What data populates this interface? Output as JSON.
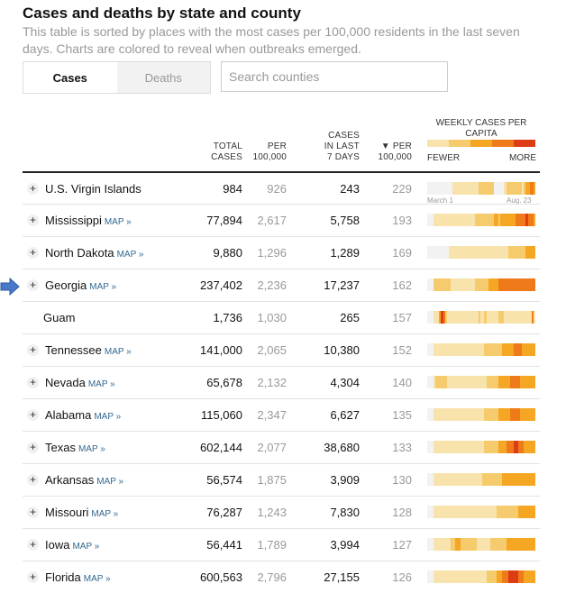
{
  "header": {
    "title": "Cases and deaths by state and county",
    "subtitle": "This table is sorted by places with the most cases per 100,000 residents in the last seven days. Charts are colored to reveal when outbreaks emerged."
  },
  "toggle": {
    "cases_label": "Cases",
    "deaths_label": "Deaths"
  },
  "search": {
    "placeholder": "Search counties"
  },
  "columns": {
    "total_cases": "TOTAL CASES",
    "per_100k": "PER 100,000",
    "cases_last_7": "CASES IN LAST 7 DAYS",
    "per_100k_7": "▼ PER 100,000",
    "weekly": "WEEKLY CASES PER CAPITA",
    "fewer": "FEWER",
    "more": "MORE"
  },
  "colors": {
    "c0": "#f2f2f2",
    "c1": "#f8e3ad",
    "c2": "#f6cb6e",
    "c3": "#f5a623",
    "c4": "#ef7a19",
    "c5": "#dc3d14"
  },
  "timeline": {
    "start": "March 1",
    "end": "Aug. 23"
  },
  "rows": [
    {
      "name": "U.S. Virgin Islands",
      "map": "",
      "plus": "+",
      "total": "984",
      "per": "926",
      "last7": "243",
      "per7": "229",
      "spark": [
        0,
        0,
        0,
        0,
        0,
        0,
        0,
        0,
        0,
        0,
        0,
        0,
        0,
        1,
        1,
        1,
        1,
        1,
        1,
        1,
        1,
        1,
        1,
        1,
        1,
        1,
        2,
        2,
        2,
        2,
        2,
        2,
        2,
        2,
        0,
        0,
        0,
        0,
        0,
        1,
        2,
        2,
        2,
        2,
        2,
        2,
        2,
        2,
        1,
        2,
        3,
        3,
        4,
        4,
        3
      ]
    },
    {
      "name": "Mississippi",
      "map": "MAP »",
      "plus": "+",
      "total": "77,894",
      "per": "2,617",
      "last7": "5,758",
      "per7": "193",
      "spark": [
        0,
        0,
        0,
        1,
        1,
        1,
        1,
        1,
        1,
        1,
        1,
        1,
        1,
        1,
        1,
        1,
        1,
        1,
        1,
        1,
        1,
        1,
        1,
        1,
        2,
        2,
        2,
        2,
        2,
        2,
        2,
        2,
        2,
        2,
        3,
        3,
        2,
        3,
        3,
        3,
        3,
        3,
        3,
        3,
        3,
        4,
        4,
        4,
        4,
        4,
        5,
        4,
        4,
        4,
        3
      ]
    },
    {
      "name": "North Dakota",
      "map": "MAP »",
      "plus": "+",
      "total": "9,880",
      "per": "1,296",
      "last7": "1,289",
      "per7": "169",
      "spark": [
        0,
        0,
        0,
        0,
        0,
        0,
        0,
        0,
        0,
        0,
        0,
        1,
        1,
        1,
        1,
        1,
        1,
        1,
        1,
        1,
        1,
        1,
        1,
        1,
        1,
        1,
        1,
        1,
        1,
        1,
        1,
        1,
        1,
        1,
        1,
        1,
        1,
        1,
        1,
        1,
        1,
        2,
        2,
        2,
        2,
        2,
        2,
        2,
        2,
        2,
        3,
        3,
        3,
        3,
        3
      ]
    },
    {
      "name": "Georgia",
      "map": "MAP »",
      "plus": "+",
      "total": "237,402",
      "per": "2,236",
      "last7": "17,237",
      "per7": "162",
      "spark": [
        0,
        0,
        0,
        2,
        2,
        2,
        2,
        2,
        2,
        2,
        2,
        2,
        1,
        1,
        1,
        1,
        1,
        1,
        1,
        1,
        1,
        1,
        1,
        1,
        2,
        2,
        2,
        2,
        2,
        2,
        2,
        3,
        3,
        3,
        3,
        3,
        4,
        4,
        4,
        4,
        4,
        4,
        4,
        4,
        4,
        4,
        4,
        4,
        4,
        4,
        4,
        4,
        4,
        4,
        4
      ]
    },
    {
      "name": "Guam",
      "map": "",
      "plus": "",
      "total": "1,736",
      "per": "1,030",
      "last7": "265",
      "per7": "157",
      "spark": [
        0,
        0,
        0,
        1,
        1,
        1,
        3,
        5,
        4,
        2,
        1,
        1,
        1,
        1,
        1,
        1,
        1,
        1,
        1,
        1,
        1,
        1,
        1,
        1,
        1,
        1,
        2,
        1,
        1,
        2,
        1,
        1,
        1,
        1,
        1,
        1,
        2,
        2,
        2,
        1,
        1,
        1,
        1,
        1,
        1,
        1,
        1,
        1,
        1,
        1,
        1,
        1,
        1,
        4,
        1
      ]
    },
    {
      "name": "Tennessee",
      "map": "MAP »",
      "plus": "+",
      "total": "141,000",
      "per": "2,065",
      "last7": "10,380",
      "per7": "152",
      "spark": [
        0,
        0,
        0,
        1,
        1,
        1,
        1,
        1,
        1,
        1,
        1,
        1,
        1,
        1,
        1,
        1,
        1,
        1,
        1,
        1,
        1,
        1,
        1,
        1,
        1,
        1,
        1,
        1,
        1,
        2,
        2,
        2,
        2,
        2,
        2,
        2,
        2,
        2,
        3,
        3,
        3,
        3,
        3,
        3,
        4,
        4,
        4,
        4,
        3,
        3,
        3,
        3,
        3,
        3,
        3
      ]
    },
    {
      "name": "Nevada",
      "map": "MAP »",
      "plus": "+",
      "total": "65,678",
      "per": "2,132",
      "last7": "4,304",
      "per7": "140",
      "spark": [
        0,
        0,
        0,
        1,
        2,
        2,
        2,
        2,
        2,
        2,
        1,
        1,
        1,
        1,
        1,
        1,
        1,
        1,
        1,
        1,
        1,
        1,
        1,
        1,
        1,
        1,
        1,
        1,
        1,
        1,
        2,
        2,
        2,
        2,
        2,
        2,
        3,
        3,
        3,
        3,
        3,
        3,
        4,
        4,
        4,
        4,
        4,
        3,
        3,
        3,
        3,
        3,
        3,
        3,
        3
      ]
    },
    {
      "name": "Alabama",
      "map": "MAP »",
      "plus": "+",
      "total": "115,060",
      "per": "2,347",
      "last7": "6,627",
      "per7": "135",
      "spark": [
        0,
        0,
        0,
        1,
        1,
        1,
        1,
        1,
        1,
        1,
        1,
        1,
        1,
        1,
        1,
        1,
        1,
        1,
        1,
        1,
        1,
        1,
        1,
        1,
        1,
        1,
        1,
        1,
        1,
        2,
        2,
        2,
        2,
        2,
        2,
        2,
        3,
        3,
        3,
        3,
        3,
        3,
        4,
        4,
        4,
        4,
        4,
        3,
        3,
        3,
        3,
        3,
        3,
        3,
        3
      ]
    },
    {
      "name": "Texas",
      "map": "MAP »",
      "plus": "+",
      "total": "602,144",
      "per": "2,077",
      "last7": "38,680",
      "per7": "133",
      "spark": [
        0,
        0,
        0,
        1,
        1,
        1,
        1,
        1,
        1,
        1,
        1,
        1,
        1,
        1,
        1,
        1,
        1,
        1,
        1,
        1,
        1,
        1,
        1,
        1,
        1,
        1,
        1,
        1,
        1,
        2,
        2,
        2,
        2,
        2,
        2,
        2,
        3,
        3,
        3,
        3,
        4,
        4,
        4,
        4,
        5,
        5,
        4,
        4,
        4,
        3,
        3,
        3,
        3,
        3,
        3
      ]
    },
    {
      "name": "Arkansas",
      "map": "MAP »",
      "plus": "+",
      "total": "56,574",
      "per": "1,875",
      "last7": "3,909",
      "per7": "130",
      "spark": [
        0,
        0,
        0,
        1,
        1,
        1,
        1,
        1,
        1,
        1,
        1,
        1,
        1,
        1,
        1,
        1,
        1,
        1,
        1,
        1,
        1,
        1,
        1,
        1,
        1,
        1,
        1,
        1,
        2,
        2,
        2,
        2,
        2,
        2,
        2,
        2,
        2,
        2,
        3,
        3,
        3,
        3,
        3,
        3,
        3,
        3,
        3,
        3,
        3,
        3,
        3,
        3,
        3,
        3,
        3
      ]
    },
    {
      "name": "Missouri",
      "map": "MAP »",
      "plus": "+",
      "total": "76,287",
      "per": "1,243",
      "last7": "7,830",
      "per7": "128",
      "spark": [
        0,
        0,
        0,
        1,
        1,
        1,
        1,
        1,
        1,
        1,
        1,
        1,
        1,
        1,
        1,
        1,
        1,
        1,
        1,
        1,
        1,
        1,
        1,
        1,
        1,
        1,
        1,
        1,
        1,
        1,
        1,
        1,
        1,
        1,
        1,
        2,
        2,
        2,
        2,
        2,
        2,
        2,
        2,
        2,
        2,
        2,
        3,
        3,
        3,
        3,
        3,
        3,
        3,
        3,
        3
      ]
    },
    {
      "name": "Iowa",
      "map": "MAP »",
      "plus": "+",
      "total": "56,441",
      "per": "1,789",
      "last7": "3,994",
      "per7": "127",
      "spark": [
        0,
        0,
        0,
        1,
        1,
        1,
        1,
        1,
        1,
        1,
        1,
        1,
        2,
        2,
        3,
        3,
        3,
        2,
        2,
        2,
        2,
        2,
        2,
        2,
        2,
        1,
        1,
        1,
        1,
        1,
        1,
        1,
        2,
        2,
        2,
        2,
        2,
        2,
        2,
        2,
        3,
        3,
        3,
        3,
        3,
        3,
        3,
        3,
        3,
        3,
        3,
        3,
        3,
        3,
        3
      ]
    },
    {
      "name": "Florida",
      "map": "MAP »",
      "plus": "+",
      "total": "600,563",
      "per": "2,796",
      "last7": "27,155",
      "per7": "126",
      "spark": [
        0,
        0,
        0,
        1,
        1,
        1,
        1,
        1,
        1,
        1,
        1,
        1,
        1,
        1,
        1,
        1,
        1,
        1,
        1,
        1,
        1,
        1,
        1,
        1,
        1,
        1,
        1,
        1,
        1,
        1,
        2,
        2,
        2,
        2,
        2,
        3,
        3,
        3,
        4,
        4,
        4,
        5,
        5,
        5,
        5,
        5,
        4,
        4,
        4,
        3,
        3,
        3,
        3,
        3,
        3
      ]
    }
  ]
}
